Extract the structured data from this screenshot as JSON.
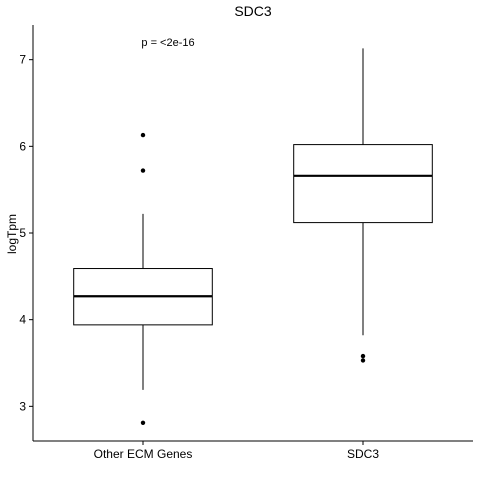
{
  "chart_data": {
    "type": "box",
    "title": "SDC3",
    "xlabel": "",
    "ylabel": "logTpm",
    "ylim": [
      2.6,
      7.4
    ],
    "yticks": [
      3,
      4,
      5,
      6,
      7
    ],
    "ytick_labels": [
      "3",
      "4",
      "5",
      "6",
      "7"
    ],
    "grid": false,
    "annotation": "p = <2e-16",
    "categories": [
      "Other ECM Genes",
      "SDC3"
    ],
    "boxes": [
      {
        "category": "Other ECM Genes",
        "whisker_low": 3.19,
        "q1": 3.94,
        "median": 4.27,
        "q3": 4.59,
        "whisker_high": 5.22,
        "outliers": [
          6.13,
          5.72,
          2.81
        ]
      },
      {
        "category": "SDC3",
        "whisker_low": 3.82,
        "q1": 5.12,
        "median": 5.66,
        "q3": 6.02,
        "whisker_high": 7.13,
        "outliers": [
          3.58,
          3.53
        ]
      }
    ]
  }
}
